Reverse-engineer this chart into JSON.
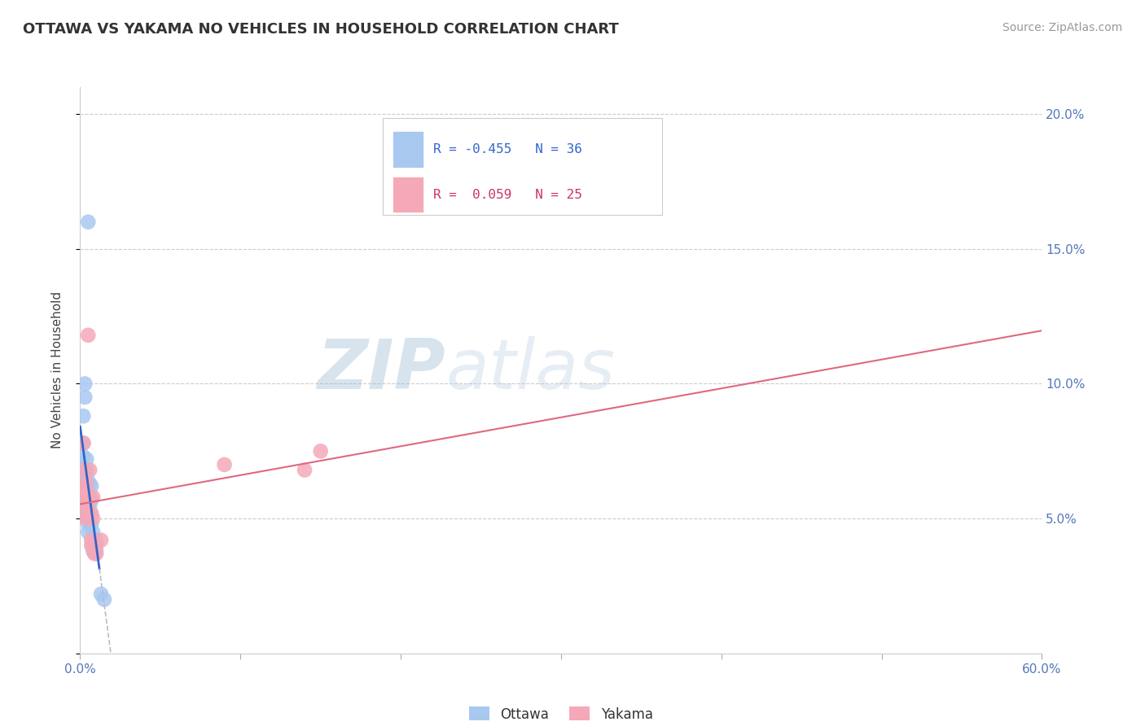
{
  "title": "OTTAWA VS YAKAMA NO VEHICLES IN HOUSEHOLD CORRELATION CHART",
  "source": "Source: ZipAtlas.com",
  "ylabel": "No Vehicles in Household",
  "x_min": 0.0,
  "x_max": 0.6,
  "y_min": 0.0,
  "y_max": 0.21,
  "x_ticks": [
    0.0,
    0.1,
    0.2,
    0.3,
    0.4,
    0.5,
    0.6
  ],
  "x_tick_labels_show": [
    "0.0%",
    "",
    "",
    "",
    "",
    "",
    "60.0%"
  ],
  "y_ticks": [
    0.0,
    0.05,
    0.1,
    0.15,
    0.2
  ],
  "y_tick_labels_right": [
    "",
    "5.0%",
    "10.0%",
    "15.0%",
    "20.0%"
  ],
  "ottawa_color": "#a8c8f0",
  "yakama_color": "#f5a8b8",
  "ottawa_line_color": "#3264c8",
  "yakama_line_color": "#e06880",
  "legend_R_ottawa": "R = -0.455",
  "legend_N_ottawa": "N = 36",
  "legend_R_yakama": "R =  0.059",
  "legend_N_yakama": "N = 25",
  "watermark_zip": "ZIP",
  "watermark_atlas": "atlas",
  "background_color": "#ffffff",
  "ottawa_scatter": [
    [
      0.005,
      0.16
    ],
    [
      0.003,
      0.1
    ],
    [
      0.003,
      0.095
    ],
    [
      0.002,
      0.088
    ],
    [
      0.002,
      0.078
    ],
    [
      0.002,
      0.073
    ],
    [
      0.002,
      0.068
    ],
    [
      0.002,
      0.065
    ],
    [
      0.002,
      0.062
    ],
    [
      0.002,
      0.06
    ],
    [
      0.003,
      0.058
    ],
    [
      0.003,
      0.055
    ],
    [
      0.003,
      0.054
    ],
    [
      0.004,
      0.072
    ],
    [
      0.004,
      0.068
    ],
    [
      0.004,
      0.065
    ],
    [
      0.005,
      0.06
    ],
    [
      0.005,
      0.058
    ],
    [
      0.005,
      0.055
    ],
    [
      0.005,
      0.05
    ],
    [
      0.005,
      0.048
    ],
    [
      0.005,
      0.045
    ],
    [
      0.006,
      0.063
    ],
    [
      0.006,
      0.058
    ],
    [
      0.006,
      0.055
    ],
    [
      0.006,
      0.052
    ],
    [
      0.007,
      0.062
    ],
    [
      0.007,
      0.057
    ],
    [
      0.007,
      0.048
    ],
    [
      0.008,
      0.045
    ],
    [
      0.008,
      0.042
    ],
    [
      0.008,
      0.038
    ],
    [
      0.01,
      0.042
    ],
    [
      0.01,
      0.038
    ],
    [
      0.013,
      0.022
    ],
    [
      0.015,
      0.02
    ]
  ],
  "yakama_scatter": [
    [
      0.002,
      0.078
    ],
    [
      0.002,
      0.068
    ],
    [
      0.002,
      0.062
    ],
    [
      0.002,
      0.058
    ],
    [
      0.002,
      0.052
    ],
    [
      0.004,
      0.063
    ],
    [
      0.004,
      0.058
    ],
    [
      0.004,
      0.055
    ],
    [
      0.004,
      0.05
    ],
    [
      0.005,
      0.118
    ],
    [
      0.006,
      0.068
    ],
    [
      0.006,
      0.058
    ],
    [
      0.007,
      0.052
    ],
    [
      0.007,
      0.042
    ],
    [
      0.007,
      0.04
    ],
    [
      0.008,
      0.058
    ],
    [
      0.008,
      0.05
    ],
    [
      0.008,
      0.04
    ],
    [
      0.009,
      0.037
    ],
    [
      0.01,
      0.04
    ],
    [
      0.01,
      0.037
    ],
    [
      0.013,
      0.042
    ],
    [
      0.09,
      0.07
    ],
    [
      0.14,
      0.068
    ],
    [
      0.15,
      0.075
    ]
  ],
  "dpi": 100
}
